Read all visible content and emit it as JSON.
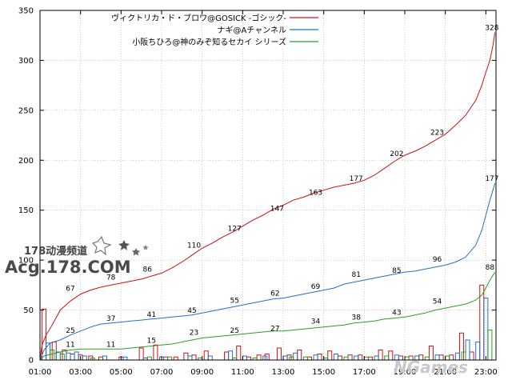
{
  "chart_data": {
    "type": "line",
    "title": "",
    "xlabel": "",
    "ylabel": "",
    "ylim": [
      0,
      350
    ],
    "xlim": [
      1,
      23.5
    ],
    "yticks": [
      0,
      50,
      100,
      150,
      200,
      250,
      300,
      350
    ],
    "xticks": [
      "01:00",
      "03:00",
      "05:00",
      "07:00",
      "09:00",
      "11:00",
      "13:00",
      "15:00",
      "17:00",
      "19:00",
      "21:00",
      "23:00"
    ],
    "grid": true,
    "legend_position": "top-right",
    "series": [
      {
        "name": "ヴィクトリカ・ド・ブロワ@GOSICK -ゴシック-",
        "color": "#d01010",
        "points": [
          [
            1.0,
            0
          ],
          [
            1.1,
            15
          ],
          [
            1.3,
            25
          ],
          [
            1.6,
            35
          ],
          [
            2.0,
            50
          ],
          [
            2.5,
            59
          ],
          [
            3.0,
            66
          ],
          [
            3.5,
            70
          ],
          [
            4.0,
            73
          ],
          [
            4.5,
            75
          ],
          [
            5.0,
            77
          ],
          [
            5.5,
            79
          ],
          [
            6.0,
            81
          ],
          [
            6.5,
            84
          ],
          [
            7.0,
            87
          ],
          [
            7.5,
            92
          ],
          [
            8.0,
            98
          ],
          [
            8.5,
            105
          ],
          [
            9.0,
            112
          ],
          [
            9.5,
            117
          ],
          [
            10.0,
            123
          ],
          [
            10.5,
            128
          ],
          [
            11.0,
            134
          ],
          [
            11.5,
            140
          ],
          [
            12.0,
            145
          ],
          [
            12.5,
            151
          ],
          [
            13.0,
            155
          ],
          [
            13.5,
            160
          ],
          [
            14.0,
            163
          ],
          [
            14.5,
            167
          ],
          [
            15.0,
            170
          ],
          [
            15.5,
            173
          ],
          [
            16.0,
            175
          ],
          [
            16.5,
            177
          ],
          [
            17.0,
            180
          ],
          [
            17.5,
            185
          ],
          [
            18.0,
            192
          ],
          [
            18.5,
            199
          ],
          [
            19.0,
            205
          ],
          [
            19.5,
            209
          ],
          [
            20.0,
            214
          ],
          [
            20.5,
            220
          ],
          [
            21.0,
            226
          ],
          [
            21.5,
            235
          ],
          [
            22.0,
            245
          ],
          [
            22.5,
            260
          ],
          [
            22.8,
            275
          ],
          [
            23.0,
            288
          ],
          [
            23.2,
            300
          ],
          [
            23.35,
            315
          ],
          [
            23.45,
            328
          ]
        ],
        "labels": [
          [
            2.5,
            67
          ],
          [
            4.5,
            78
          ],
          [
            6.3,
            86
          ],
          [
            8.6,
            110
          ],
          [
            10.6,
            127
          ],
          [
            12.7,
            147
          ],
          [
            14.6,
            163
          ],
          [
            16.6,
            177
          ],
          [
            18.6,
            202
          ],
          [
            20.6,
            223
          ],
          [
            23.3,
            328
          ]
        ],
        "bars": [
          [
            1.2,
            51
          ],
          [
            1.7,
            18
          ],
          [
            2.2,
            10
          ],
          [
            2.6,
            6
          ],
          [
            3.0,
            5
          ],
          [
            3.5,
            4
          ],
          [
            4.0,
            3
          ],
          [
            5.0,
            3
          ],
          [
            6.0,
            12
          ],
          [
            6.7,
            15
          ],
          [
            7.2,
            3
          ],
          [
            7.7,
            3
          ],
          [
            8.2,
            7
          ],
          [
            8.6,
            5
          ],
          [
            9.2,
            9
          ],
          [
            10.2,
            8
          ],
          [
            10.8,
            14
          ],
          [
            11.3,
            3
          ],
          [
            11.8,
            5
          ],
          [
            12.2,
            6
          ],
          [
            12.8,
            12
          ],
          [
            13.3,
            5
          ],
          [
            13.8,
            10
          ],
          [
            14.3,
            3
          ],
          [
            14.8,
            6
          ],
          [
            15.3,
            9
          ],
          [
            15.8,
            4
          ],
          [
            16.3,
            5
          ],
          [
            16.8,
            5
          ],
          [
            17.3,
            3
          ],
          [
            17.8,
            10
          ],
          [
            18.3,
            9
          ],
          [
            18.8,
            4
          ],
          [
            19.3,
            4
          ],
          [
            19.8,
            5
          ],
          [
            20.3,
            14
          ],
          [
            20.8,
            5
          ],
          [
            21.3,
            5
          ],
          [
            21.8,
            27
          ],
          [
            22.3,
            8
          ],
          [
            22.8,
            75
          ]
        ]
      },
      {
        "name": "ナギ@Aチャンネル",
        "color": "#2070c8",
        "points": [
          [
            1.0,
            0
          ],
          [
            1.2,
            10
          ],
          [
            1.5,
            17
          ],
          [
            2.0,
            20
          ],
          [
            2.5,
            25
          ],
          [
            3.0,
            29
          ],
          [
            3.5,
            33
          ],
          [
            4.0,
            36
          ],
          [
            4.5,
            37
          ],
          [
            5.0,
            38
          ],
          [
            5.5,
            39
          ],
          [
            6.0,
            40
          ],
          [
            6.5,
            41
          ],
          [
            7.0,
            42
          ],
          [
            7.5,
            43
          ],
          [
            8.0,
            44
          ],
          [
            8.5,
            45
          ],
          [
            9.0,
            47
          ],
          [
            9.5,
            49
          ],
          [
            10.0,
            51
          ],
          [
            10.5,
            53
          ],
          [
            11.0,
            55
          ],
          [
            11.5,
            57
          ],
          [
            12.0,
            59
          ],
          [
            12.5,
            61
          ],
          [
            13.0,
            62
          ],
          [
            13.5,
            64
          ],
          [
            14.0,
            66
          ],
          [
            14.5,
            68
          ],
          [
            15.0,
            70
          ],
          [
            15.5,
            72
          ],
          [
            16.0,
            76
          ],
          [
            16.5,
            78
          ],
          [
            17.0,
            80
          ],
          [
            17.5,
            82
          ],
          [
            18.0,
            84
          ],
          [
            18.5,
            86
          ],
          [
            19.0,
            88
          ],
          [
            19.5,
            89
          ],
          [
            20.0,
            91
          ],
          [
            20.5,
            93
          ],
          [
            21.0,
            95
          ],
          [
            21.5,
            98
          ],
          [
            22.0,
            103
          ],
          [
            22.5,
            115
          ],
          [
            22.8,
            130
          ],
          [
            23.0,
            145
          ],
          [
            23.2,
            160
          ],
          [
            23.35,
            170
          ],
          [
            23.45,
            177
          ]
        ],
        "labels": [
          [
            2.5,
            25
          ],
          [
            4.5,
            37
          ],
          [
            6.5,
            41
          ],
          [
            8.5,
            45
          ],
          [
            10.6,
            55
          ],
          [
            12.6,
            62
          ],
          [
            14.6,
            69
          ],
          [
            16.6,
            81
          ],
          [
            18.6,
            85
          ],
          [
            20.6,
            96
          ],
          [
            23.3,
            177
          ]
        ],
        "bars": [
          [
            1.4,
            17
          ],
          [
            1.9,
            8
          ],
          [
            2.4,
            7
          ],
          [
            2.8,
            8
          ],
          [
            3.2,
            4
          ],
          [
            4.2,
            4
          ],
          [
            5.2,
            3
          ],
          [
            6.2,
            2
          ],
          [
            7.0,
            3
          ],
          [
            8.4,
            4
          ],
          [
            9.4,
            4
          ],
          [
            10.4,
            9
          ],
          [
            11.1,
            4
          ],
          [
            12.1,
            4
          ],
          [
            13.1,
            4
          ],
          [
            13.6,
            7
          ],
          [
            14.6,
            5
          ],
          [
            15.6,
            6
          ],
          [
            16.6,
            4
          ],
          [
            17.6,
            4
          ],
          [
            18.6,
            5
          ],
          [
            19.6,
            4
          ],
          [
            20.6,
            5
          ],
          [
            21.6,
            7
          ],
          [
            22.1,
            20
          ],
          [
            22.6,
            18
          ],
          [
            23.0,
            62
          ]
        ]
      },
      {
        "name": "小阪ちひろ@神のみぞ知るセカイ シリーズ",
        "color": "#28a028",
        "points": [
          [
            1.0,
            0
          ],
          [
            1.2,
            4
          ],
          [
            1.6,
            6
          ],
          [
            2.0,
            8
          ],
          [
            2.5,
            10
          ],
          [
            3.0,
            11
          ],
          [
            3.5,
            11
          ],
          [
            4.0,
            11
          ],
          [
            4.5,
            11
          ],
          [
            5.0,
            11
          ],
          [
            5.5,
            12
          ],
          [
            6.0,
            13
          ],
          [
            6.5,
            14
          ],
          [
            7.0,
            15
          ],
          [
            7.5,
            16
          ],
          [
            8.0,
            18
          ],
          [
            8.5,
            20
          ],
          [
            9.0,
            22
          ],
          [
            9.5,
            23
          ],
          [
            10.0,
            24
          ],
          [
            10.5,
            25
          ],
          [
            11.0,
            26
          ],
          [
            11.5,
            27
          ],
          [
            12.0,
            28
          ],
          [
            12.5,
            29
          ],
          [
            13.0,
            29
          ],
          [
            13.5,
            30
          ],
          [
            14.0,
            31
          ],
          [
            14.5,
            32
          ],
          [
            15.0,
            33
          ],
          [
            15.5,
            34
          ],
          [
            16.0,
            35
          ],
          [
            16.5,
            37
          ],
          [
            17.0,
            38
          ],
          [
            17.5,
            39
          ],
          [
            18.0,
            41
          ],
          [
            18.5,
            42
          ],
          [
            19.0,
            43
          ],
          [
            19.5,
            45
          ],
          [
            20.0,
            47
          ],
          [
            20.5,
            50
          ],
          [
            21.0,
            52
          ],
          [
            21.5,
            54
          ],
          [
            22.0,
            56
          ],
          [
            22.5,
            60
          ],
          [
            22.8,
            65
          ],
          [
            23.0,
            72
          ],
          [
            23.2,
            80
          ],
          [
            23.45,
            88
          ]
        ],
        "labels": [
          [
            2.5,
            11
          ],
          [
            4.5,
            11
          ],
          [
            6.5,
            15
          ],
          [
            8.6,
            23
          ],
          [
            10.6,
            25
          ],
          [
            12.6,
            27
          ],
          [
            14.6,
            34
          ],
          [
            16.6,
            38
          ],
          [
            18.6,
            43
          ],
          [
            20.6,
            54
          ],
          [
            23.2,
            88
          ]
        ],
        "bars": [
          [
            1.6,
            10
          ],
          [
            2.1,
            6
          ],
          [
            3.6,
            2
          ],
          [
            6.4,
            3
          ],
          [
            7.4,
            3
          ],
          [
            8.9,
            2
          ],
          [
            10.6,
            2
          ],
          [
            11.6,
            2
          ],
          [
            13.4,
            3
          ],
          [
            14.1,
            3
          ],
          [
            15.1,
            2
          ],
          [
            16.1,
            3
          ],
          [
            17.1,
            3
          ],
          [
            18.1,
            4
          ],
          [
            19.1,
            3
          ],
          [
            20.1,
            3
          ],
          [
            21.1,
            4
          ],
          [
            21.9,
            8
          ],
          [
            23.2,
            30
          ]
        ]
      }
    ]
  },
  "watermark": {
    "line1": "178动漫频道",
    "line2": "Acg.178.COM",
    "corner": "NGames"
  }
}
